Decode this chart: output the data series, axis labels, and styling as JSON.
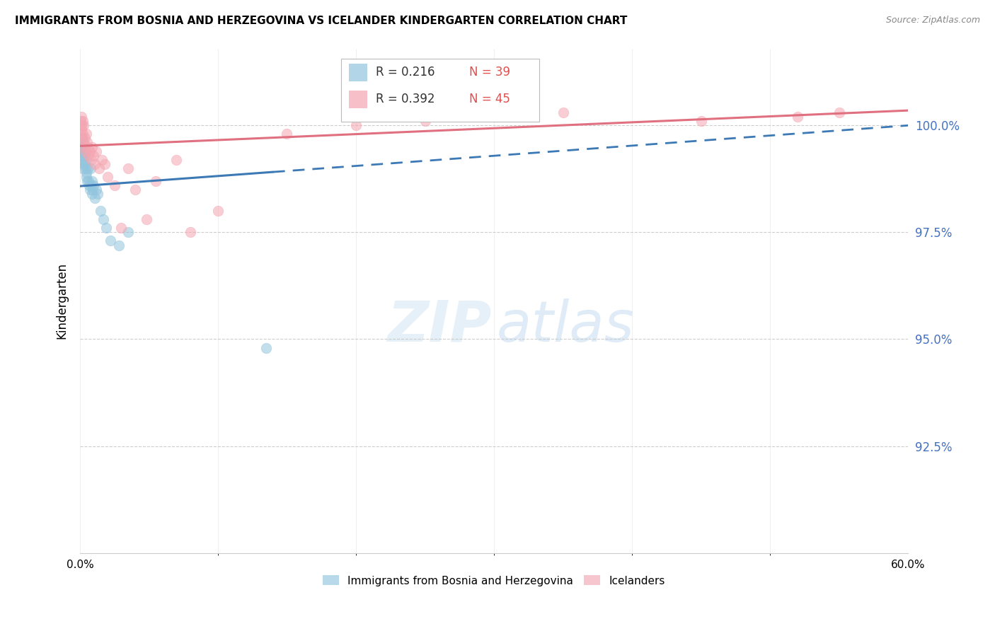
{
  "title": "IMMIGRANTS FROM BOSNIA AND HERZEGOVINA VS ICELANDER KINDERGARTEN CORRELATION CHART",
  "source": "Source: ZipAtlas.com",
  "ylabel": "Kindergarten",
  "xlim": [
    0.0,
    60.0
  ],
  "ylim": [
    90.0,
    101.8
  ],
  "ytick_vals": [
    92.5,
    95.0,
    97.5,
    100.0
  ],
  "ytick_labels": [
    "92.5%",
    "95.0%",
    "97.5%",
    "100.0%"
  ],
  "xtick_vals": [
    0.0,
    60.0
  ],
  "xtick_labels": [
    "0.0%",
    "60.0%"
  ],
  "xtick_minor": [
    10,
    20,
    30,
    40,
    50
  ],
  "legend_r_blue": "R = 0.216",
  "legend_n_blue": "N = 39",
  "legend_r_pink": "R = 0.392",
  "legend_n_pink": "N = 45",
  "legend_label_blue": "Immigrants from Bosnia and Herzegovina",
  "legend_label_pink": "Icelanders",
  "watermark_zip": "ZIP",
  "watermark_atlas": "atlas",
  "blue_scatter_color": "#92c5de",
  "pink_scatter_color": "#f4a6b2",
  "blue_line_color": "#3d7ab5",
  "pink_line_color": "#e07080",
  "blue_x": [
    0.05,
    0.08,
    0.1,
    0.12,
    0.15,
    0.18,
    0.2,
    0.22,
    0.25,
    0.28,
    0.3,
    0.32,
    0.35,
    0.38,
    0.4,
    0.42,
    0.45,
    0.48,
    0.5,
    0.55,
    0.6,
    0.65,
    0.7,
    0.75,
    0.8,
    0.85,
    0.9,
    0.95,
    1.0,
    1.1,
    1.2,
    1.3,
    1.5,
    1.7,
    1.9,
    2.2,
    2.8,
    3.5,
    13.5
  ],
  "blue_y": [
    99.6,
    99.4,
    99.5,
    99.3,
    99.7,
    99.2,
    99.6,
    99.0,
    99.4,
    99.1,
    99.5,
    99.3,
    99.1,
    99.4,
    99.2,
    99.0,
    98.9,
    98.8,
    98.7,
    99.0,
    98.7,
    98.6,
    98.5,
    99.0,
    98.6,
    98.4,
    98.7,
    98.5,
    98.6,
    98.3,
    98.5,
    98.4,
    98.0,
    97.8,
    97.6,
    97.3,
    97.2,
    97.5,
    94.8
  ],
  "pink_x": [
    0.03,
    0.05,
    0.07,
    0.1,
    0.12,
    0.15,
    0.18,
    0.2,
    0.22,
    0.25,
    0.28,
    0.3,
    0.35,
    0.4,
    0.45,
    0.5,
    0.55,
    0.6,
    0.7,
    0.8,
    0.9,
    1.0,
    1.1,
    1.2,
    1.4,
    1.6,
    1.8,
    2.0,
    2.5,
    3.0,
    3.5,
    4.0,
    4.8,
    5.5,
    7.0,
    8.0,
    10.0,
    15.0,
    20.0,
    25.0,
    30.0,
    35.0,
    45.0,
    52.0,
    55.0
  ],
  "pink_y": [
    100.0,
    99.8,
    100.1,
    99.9,
    100.2,
    100.0,
    99.7,
    100.1,
    99.8,
    99.6,
    100.0,
    99.5,
    99.7,
    99.4,
    99.8,
    99.6,
    99.5,
    99.3,
    99.4,
    99.2,
    99.5,
    99.3,
    99.1,
    99.4,
    99.0,
    99.2,
    99.1,
    98.8,
    98.6,
    97.6,
    99.0,
    98.5,
    97.8,
    98.7,
    99.2,
    97.5,
    98.0,
    99.8,
    100.0,
    100.1,
    100.2,
    100.3,
    100.1,
    100.2,
    100.3
  ],
  "blue_trendline_x0": 0.0,
  "blue_trendline_y0": 98.58,
  "blue_trendline_x1": 60.0,
  "blue_trendline_y1": 100.0,
  "blue_solid_xmax": 14.0,
  "pink_trendline_x0": 0.0,
  "pink_trendline_y0": 99.52,
  "pink_trendline_x1": 60.0,
  "pink_trendline_y1": 100.35
}
